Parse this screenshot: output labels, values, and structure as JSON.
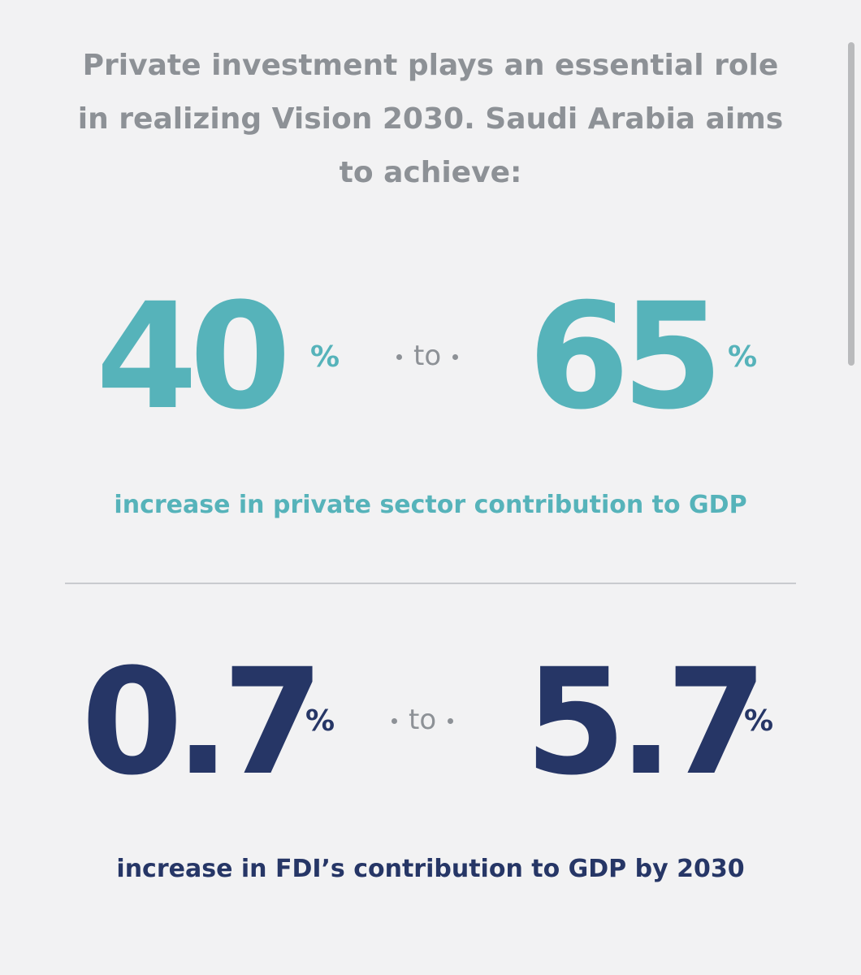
{
  "intro": {
    "line1": "Private investment plays an essential role",
    "line2": "in realizing Vision 2030. Saudi Arabia aims",
    "line3": "to achieve:"
  },
  "stat_private_sector": {
    "from_value": "40",
    "to_value": "65",
    "unit": "%",
    "connector": "to",
    "caption": "increase in private sector contribution to GDP",
    "color": "#56b3ba"
  },
  "stat_fdi": {
    "from_value": "0.7",
    "to_value": "5.7",
    "unit": "%",
    "connector": "to",
    "caption": "increase in FDI’s contribution to GDP by 2030",
    "color": "#263666"
  },
  "colors": {
    "background": "#f2f2f3",
    "intro_text": "#8d9196",
    "divider": "#c9cbce"
  }
}
